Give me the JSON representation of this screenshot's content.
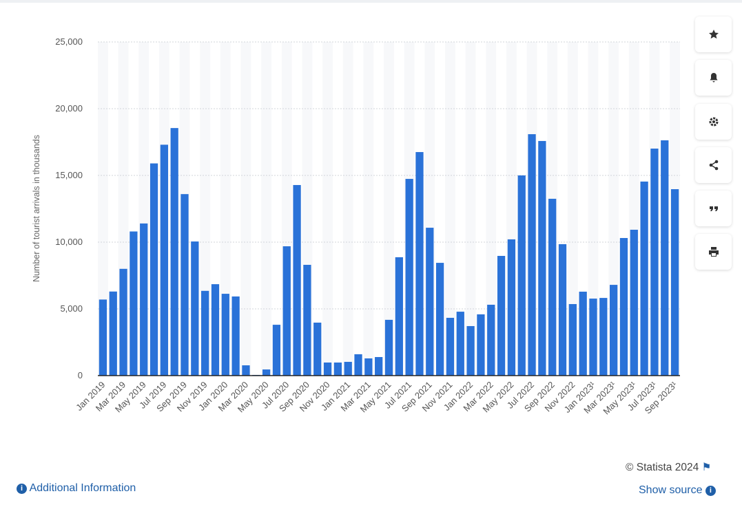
{
  "chart_data": {
    "type": "bar",
    "y_label": "Number of tourist arrivals in thousands",
    "categories": [
      "Jan 2019",
      null,
      "Mar 2019",
      null,
      "May 2019",
      null,
      "Jul 2019",
      null,
      "Sep 2019",
      null,
      "Nov 2019",
      null,
      "Jan 2020",
      null,
      "Mar 2020",
      null,
      "May 2020",
      null,
      "Jul 2020",
      null,
      "Sep 2020",
      null,
      "Nov 2020",
      null,
      "Jan 2021",
      null,
      "Mar 2021",
      null,
      "May 2021",
      null,
      "Jul 2021",
      null,
      "Sep 2021",
      null,
      "Nov 2021",
      null,
      "Jan 2022",
      null,
      "Mar 2022",
      null,
      "May 2022",
      null,
      "Jul 2022",
      null,
      "Sep 2022",
      null,
      "Nov 2022",
      null,
      "Jan 2023¹",
      null,
      "Mar 2023¹",
      null,
      "May 2023¹",
      null,
      "Jul 2023¹",
      null,
      "Sep 2023¹"
    ],
    "values": [
      5700,
      6300,
      8000,
      10800,
      11400,
      15900,
      17300,
      18550,
      13600,
      10050,
      6350,
      6850,
      6130,
      5930,
      770,
      50,
      460,
      3810,
      9690,
      14280,
      8300,
      3970,
      980,
      980,
      1030,
      1600,
      1290,
      1390,
      4180,
      8870,
      14740,
      16750,
      11080,
      8450,
      4330,
      4790,
      3710,
      4590,
      5310,
      8970,
      10210,
      15000,
      18090,
      17580,
      13250,
      9850,
      5360,
      6290,
      5770,
      5820,
      6800,
      10310,
      10930,
      14540,
      17010,
      17630,
      13970
    ],
    "color": "#2a72d8",
    "ylim": [
      0,
      25000
    ],
    "yticks": [
      0,
      {
        "value": 5000,
        "label": "5,000"
      },
      {
        "value": 10000,
        "label": "10,000"
      },
      {
        "value": 15000,
        "label": "15,000"
      },
      {
        "value": 20000,
        "label": "20,000"
      },
      {
        "value": 25000,
        "label": "25,000"
      }
    ],
    "grid": true
  },
  "footer": {
    "copyright": "© Statista 2024",
    "additional": "Additional Information",
    "source": "Show source"
  }
}
